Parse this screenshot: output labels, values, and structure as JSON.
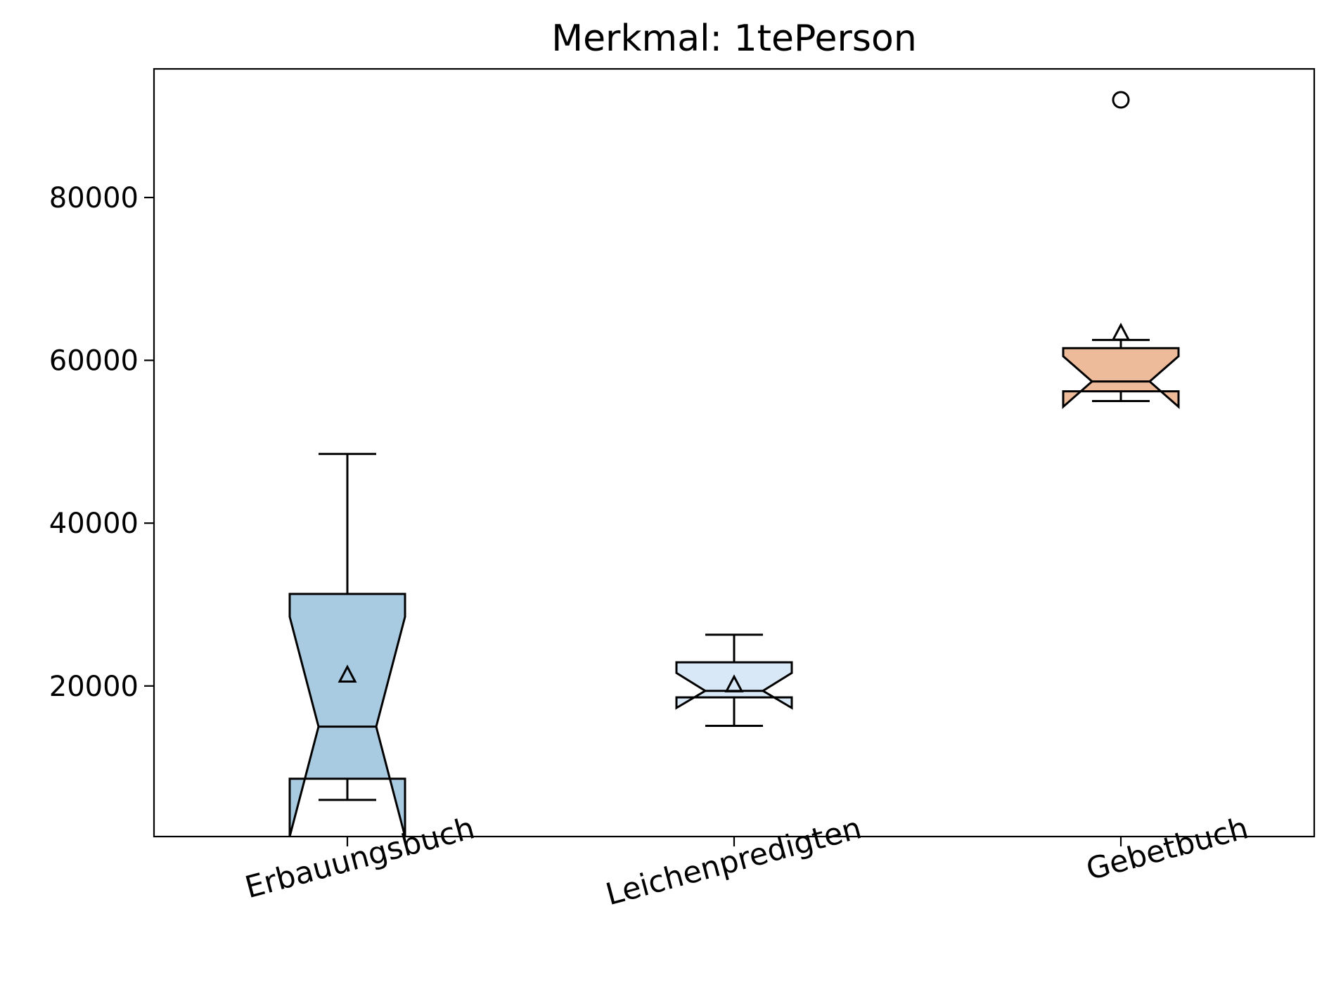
{
  "chart_data": {
    "type": "box",
    "title": "Merkmal: 1tePerson",
    "xlabel": "",
    "ylabel": "",
    "ylim": [
      1500,
      95800
    ],
    "yticks": [
      20000,
      40000,
      60000,
      80000
    ],
    "ytick_labels": [
      "20000",
      "40000",
      "60000",
      "80000"
    ],
    "categories": [
      "Erbauungsbuch",
      "Leichenpredigten",
      "Gebetbuch"
    ],
    "notched": true,
    "show_means": true,
    "boxes": [
      {
        "category": "Erbauungsbuch",
        "color": "#a8cbe1",
        "whisker_low": 6000,
        "q1": 8600,
        "median": 15000,
        "q3": 31300,
        "whisker_high": 48500,
        "notch_low": 1500,
        "notch_high": 28500,
        "mean": 21300,
        "fliers": []
      },
      {
        "category": "Leichenpredigten",
        "color": "#d8e8f6",
        "whisker_low": 15100,
        "q1": 18600,
        "median": 19400,
        "q3": 22900,
        "whisker_high": 26300,
        "notch_low": 17300,
        "notch_high": 21600,
        "mean": 20100,
        "fliers": []
      },
      {
        "category": "Gebetbuch",
        "color": "#edbb99",
        "whisker_low": 55000,
        "q1": 56200,
        "median": 57400,
        "q3": 61500,
        "whisker_high": 62500,
        "notch_low": 54300,
        "notch_high": 60500,
        "mean": 63300,
        "fliers": [
          92000
        ]
      }
    ]
  }
}
